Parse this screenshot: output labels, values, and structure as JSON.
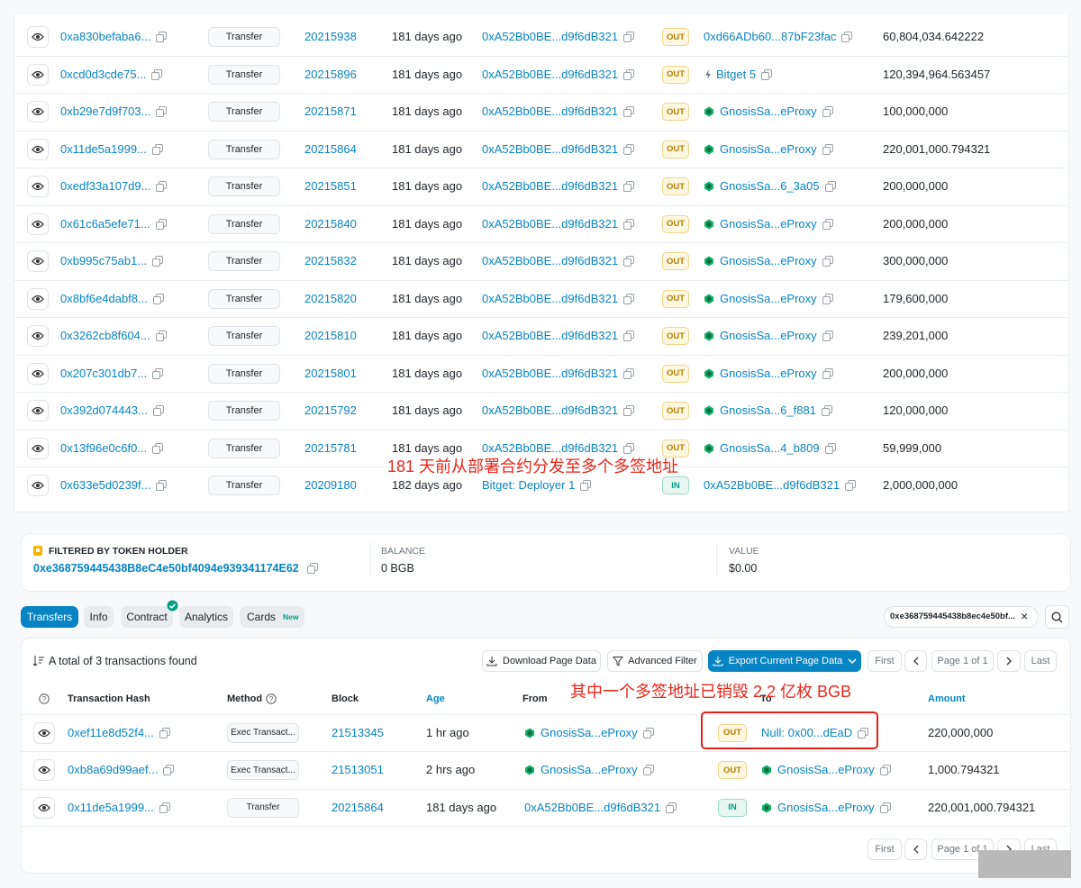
{
  "top_table": {
    "rows": [
      [
        "0xa830befaba6...",
        "Transfer",
        "20215938",
        "181 days ago",
        "0xA52Bb0BE...d9f6dB321",
        "OUT",
        "0xd66ADb60...87bF23fac",
        "60,804,034.642222"
      ],
      [
        "0xcd0d3cde75...",
        "Transfer",
        "20215896",
        "181 days ago",
        "0xA52Bb0BE...d9f6dB321",
        "OUT",
        "Bitget 5",
        "120,394,964.563457"
      ],
      [
        "0xb29e7d9f703...",
        "Transfer",
        "20215871",
        "181 days ago",
        "0xA52Bb0BE...d9f6dB321",
        "OUT",
        "GnosisSa...eProxy",
        "100,000,000"
      ],
      [
        "0x11de5a1999...",
        "Transfer",
        "20215864",
        "181 days ago",
        "0xA52Bb0BE...d9f6dB321",
        "OUT",
        "GnosisSa...eProxy",
        "220,001,000.794321"
      ],
      [
        "0xedf33a107d9...",
        "Transfer",
        "20215851",
        "181 days ago",
        "0xA52Bb0BE...d9f6dB321",
        "OUT",
        "GnosisSa...6_3a05",
        "200,000,000"
      ],
      [
        "0x61c6a5efe71...",
        "Transfer",
        "20215840",
        "181 days ago",
        "0xA52Bb0BE...d9f6dB321",
        "OUT",
        "GnosisSa...eProxy",
        "200,000,000"
      ],
      [
        "0xb995c75ab1...",
        "Transfer",
        "20215832",
        "181 days ago",
        "0xA52Bb0BE...d9f6dB321",
        "OUT",
        "GnosisSa...eProxy",
        "300,000,000"
      ],
      [
        "0x8bf6e4dabf8...",
        "Transfer",
        "20215820",
        "181 days ago",
        "0xA52Bb0BE...d9f6dB321",
        "OUT",
        "GnosisSa...eProxy",
        "179,600,000"
      ],
      [
        "0x3262cb8f604...",
        "Transfer",
        "20215810",
        "181 days ago",
        "0xA52Bb0BE...d9f6dB321",
        "OUT",
        "GnosisSa...eProxy",
        "239,201,000"
      ],
      [
        "0x207c301db7...",
        "Transfer",
        "20215801",
        "181 days ago",
        "0xA52Bb0BE...d9f6dB321",
        "OUT",
        "GnosisSa...eProxy",
        "200,000,000"
      ],
      [
        "0x392d074443...",
        "Transfer",
        "20215792",
        "181 days ago",
        "0xA52Bb0BE...d9f6dB321",
        "OUT",
        "GnosisSa...6_f881",
        "120,000,000"
      ],
      [
        "0x13f96e0c6f0...",
        "Transfer",
        "20215781",
        "181 days ago",
        "0xA52Bb0BE...d9f6dB321",
        "OUT",
        "GnosisSa...4_b809",
        "59,999,000"
      ],
      [
        "0x633e5d0239f...",
        "Transfer",
        "20209180",
        "182 days ago",
        "Bitget: Deployer 1",
        "IN",
        "0xA52Bb0BE...d9f6dB321",
        "2,000,000,000"
      ]
    ]
  },
  "annotation_1": "181 天前从部署合约分发至多个多签地址",
  "holder_filter": {
    "label": "FILTERED BY TOKEN HOLDER",
    "address": "0xe368759445438B8eC4e50bf4094e939341174E62",
    "balance_label": "BALANCE",
    "balance": "0 BGB",
    "value_label": "VALUE",
    "value": "$0.00"
  },
  "tabs": [
    "Transfers",
    "Info",
    "Contract",
    "Analytics",
    "Cards"
  ],
  "new_badge": "New",
  "search": "0xe368759445438b8ec4e50bf...",
  "summary": "A total of 3 transactions found",
  "buttons": [
    "Download Page Data",
    "Advanced Filter",
    "Export Current Page Data"
  ],
  "pagination": {
    "first": "First",
    "page": "Page 1 of 1",
    "last": "Last"
  },
  "columns": [
    "Transaction Hash",
    "Method",
    "Block",
    "Age",
    "From",
    "To",
    "Amount"
  ],
  "rows": [
    [
      "0xef11e8d52f4...",
      "Exec Transact...",
      "21513345",
      "1 hr ago",
      "GnosisSa...eProxy",
      "OUT",
      "Null: 0x00...dEaD",
      "220,000,000"
    ],
    [
      "0xb8a69d99aef...",
      "Exec Transact...",
      "21513051",
      "2 hrs ago",
      "GnosisSa...eProxy",
      "OUT",
      "GnosisSa...eProxy",
      "1,000.794321"
    ],
    [
      "0x11de5a1999...",
      "Transfer",
      "20215864",
      "181 days ago",
      "0xA52Bb0BE...d9f6dB321",
      "IN",
      "GnosisSa...eProxy",
      "220,001,000.794321"
    ]
  ],
  "annotation_2": "其中一个多签地址已销毁 2.2 亿枚 BGB",
  "bottom_pagination": {
    "first": "First",
    "page": "Page 1 of 1",
    "last": "Last"
  }
}
